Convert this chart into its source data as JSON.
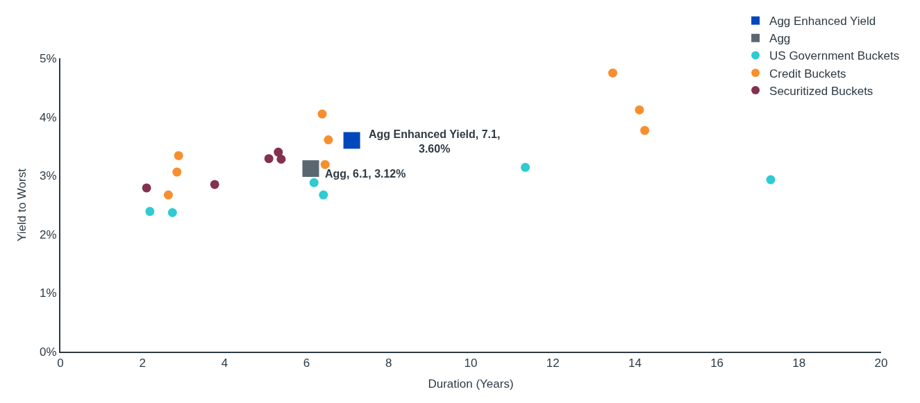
{
  "chart_data": {
    "type": "scatter",
    "xlabel": "Duration (Years)",
    "ylabel": "Yield to Worst",
    "xlim": [
      0,
      20
    ],
    "xticks": [
      0,
      2,
      4,
      6,
      8,
      10,
      12,
      14,
      16,
      18,
      20
    ],
    "ylim": [
      0,
      5
    ],
    "yticks": [
      {
        "value": 0,
        "label": "0%"
      },
      {
        "value": 1,
        "label": "1%"
      },
      {
        "value": 2,
        "label": "2%"
      },
      {
        "value": 3,
        "label": "3%"
      },
      {
        "value": 4,
        "label": "4%"
      },
      {
        "value": 5,
        "label": "5%"
      }
    ],
    "legend": "top right",
    "series": [
      {
        "name": "Agg Enhanced Yield",
        "color": "#0047bb",
        "marker": "square",
        "x": [
          7.1
        ],
        "values": [
          3.6
        ]
      },
      {
        "name": "Agg",
        "color": "#5b6770",
        "marker": "square",
        "x": [
          6.1
        ],
        "values": [
          3.12
        ]
      },
      {
        "name": "US Government Buckets",
        "color": "#2ecbd1",
        "marker": "circle",
        "x": [
          2.18,
          2.73,
          6.18,
          6.41,
          11.33,
          17.31
        ],
        "values": [
          2.39,
          2.37,
          2.88,
          2.67,
          3.14,
          2.93
        ]
      },
      {
        "name": "Credit Buckets",
        "color": "#f78f2e",
        "marker": "circle",
        "x": [
          2.63,
          2.84,
          2.88,
          6.38,
          6.53,
          6.45,
          13.46,
          14.11,
          14.24
        ],
        "values": [
          2.67,
          3.06,
          3.34,
          4.05,
          3.61,
          3.19,
          4.75,
          4.12,
          3.77
        ]
      },
      {
        "name": "Securitized Buckets",
        "color": "#84304f",
        "marker": "circle",
        "x": [
          2.1,
          3.76,
          5.08,
          5.31,
          5.38
        ],
        "values": [
          2.79,
          2.85,
          3.29,
          3.4,
          3.28
        ]
      }
    ],
    "annotations": [
      {
        "text": "Agg Enhanced Yield, 7.1,\n3.60%",
        "x": 7.1,
        "y": 3.6
      },
      {
        "text": "Agg, 6.1, 3.12%",
        "x": 6.1,
        "y": 3.12
      }
    ]
  }
}
